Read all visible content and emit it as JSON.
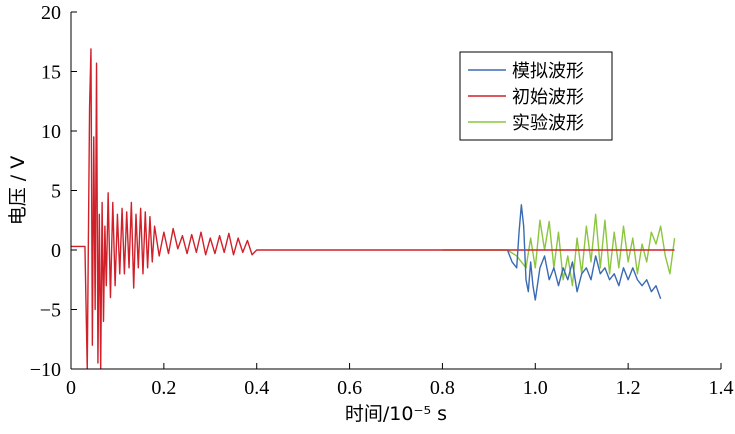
{
  "chart_data": {
    "type": "line",
    "title": "",
    "xlabel": "时间/10⁻⁵ s",
    "ylabel": "电压 / V",
    "xlim": [
      0,
      1.4
    ],
    "ylim": [
      -10,
      20
    ],
    "xticks": [
      0,
      0.2,
      0.4,
      0.6,
      0.8,
      1.0,
      1.2,
      1.4
    ],
    "xtick_labels": [
      "0",
      "0.2",
      "0.4",
      "0.6",
      "0.8",
      "1.0",
      "1.2",
      "1.4"
    ],
    "yticks": [
      -10,
      -5,
      0,
      5,
      10,
      15,
      20
    ],
    "ytick_labels": [
      "−10",
      "−5",
      "0",
      "5",
      "10",
      "15",
      "20"
    ],
    "grid": false,
    "legend_position": "top-right",
    "series": [
      {
        "name": "模拟波形",
        "color": "#3a6ab4",
        "x": [
          0.94,
          0.95,
          0.96,
          0.965,
          0.97,
          0.975,
          0.98,
          0.985,
          0.99,
          0.995,
          1.0,
          1.01,
          1.02,
          1.03,
          1.04,
          1.05,
          1.06,
          1.07,
          1.08,
          1.09,
          1.1,
          1.11,
          1.12,
          1.13,
          1.14,
          1.15,
          1.16,
          1.17,
          1.18,
          1.19,
          1.2,
          1.21,
          1.22,
          1.23,
          1.24,
          1.25,
          1.26,
          1.27
        ],
        "y": [
          0,
          -1,
          -1.5,
          1.5,
          3.8,
          2.0,
          -2.5,
          -3.5,
          -1.0,
          -3.0,
          -4.2,
          -1.5,
          -0.5,
          -2.5,
          -1.5,
          -3.0,
          -1.5,
          -2.5,
          -1.0,
          -3.5,
          -2.0,
          -1.5,
          -2.5,
          -0.5,
          -2.0,
          -1.5,
          -2.5,
          -2.0,
          -3.0,
          -1.5,
          -2.5,
          -1.5,
          -2.5,
          -3.0,
          -2.5,
          -3.5,
          -3.0,
          -4.1
        ]
      },
      {
        "name": "初始波形",
        "color": "#d0202a",
        "x": [
          0,
          0.03,
          0.035,
          0.04,
          0.043,
          0.046,
          0.049,
          0.052,
          0.055,
          0.058,
          0.061,
          0.064,
          0.067,
          0.07,
          0.073,
          0.076,
          0.08,
          0.085,
          0.09,
          0.095,
          0.1,
          0.105,
          0.11,
          0.115,
          0.12,
          0.125,
          0.13,
          0.135,
          0.14,
          0.145,
          0.15,
          0.155,
          0.16,
          0.165,
          0.17,
          0.175,
          0.18,
          0.19,
          0.2,
          0.21,
          0.22,
          0.23,
          0.24,
          0.25,
          0.26,
          0.27,
          0.28,
          0.29,
          0.3,
          0.31,
          0.32,
          0.33,
          0.34,
          0.35,
          0.36,
          0.37,
          0.38,
          0.39,
          0.4,
          0.45,
          0.8,
          1.3
        ],
        "y": [
          0.3,
          0.3,
          -10,
          12,
          16.9,
          -8,
          9.5,
          -5,
          15.7,
          -9.5,
          3,
          -10,
          4,
          -6,
          2,
          -3,
          4.8,
          -4,
          4,
          -3,
          3,
          -2,
          3.5,
          -2,
          3.2,
          -1.5,
          4,
          -3.2,
          3,
          -1.5,
          3.5,
          -2,
          3.2,
          -1.5,
          2.8,
          -1,
          2,
          -0.5,
          1.5,
          -0.3,
          1.8,
          0.1,
          1.2,
          -0.3,
          1.3,
          -0.2,
          1.5,
          -0.4,
          1.0,
          -0.3,
          1.2,
          -0.2,
          1.4,
          -0.4,
          1.0,
          -0.2,
          0.8,
          -0.4,
          0,
          0,
          0,
          0
        ]
      },
      {
        "name": "实验波形",
        "color": "#8cc63f",
        "x": [
          0.8,
          0.94,
          0.96,
          0.98,
          0.99,
          1.0,
          1.01,
          1.02,
          1.03,
          1.04,
          1.05,
          1.06,
          1.07,
          1.08,
          1.09,
          1.1,
          1.11,
          1.12,
          1.13,
          1.14,
          1.15,
          1.16,
          1.17,
          1.18,
          1.19,
          1.2,
          1.21,
          1.22,
          1.23,
          1.24,
          1.25,
          1.26,
          1.27,
          1.28,
          1.29,
          1.3
        ],
        "y": [
          0,
          0,
          -0.5,
          -1.5,
          1.0,
          -1.5,
          2.5,
          0,
          2.4,
          -1.5,
          1.5,
          -2.5,
          -0.5,
          -3.0,
          1.0,
          -2.0,
          2.0,
          -1.0,
          3.0,
          -1.5,
          2.5,
          -2.0,
          1.5,
          -1.5,
          2.0,
          -1.0,
          1.0,
          -2.0,
          0.5,
          -1.0,
          1.5,
          0.5,
          2.0,
          -0.5,
          -2.0,
          1.0
        ]
      }
    ]
  }
}
